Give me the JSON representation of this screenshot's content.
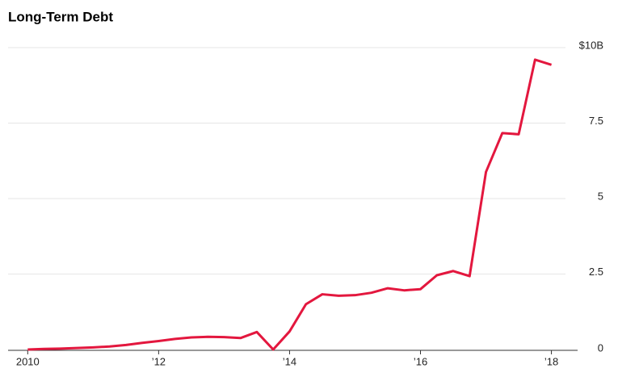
{
  "chart_data": {
    "type": "line",
    "title": "Long-Term Debt",
    "x": [
      2010,
      2010.25,
      2010.5,
      2010.75,
      2011,
      2011.25,
      2011.5,
      2011.75,
      2012,
      2012.25,
      2012.5,
      2012.75,
      2013,
      2013.25,
      2013.5,
      2013.75,
      2014,
      2014.25,
      2014.5,
      2014.75,
      2015,
      2015.25,
      2015.5,
      2015.75,
      2016,
      2016.25,
      2016.5,
      2016.75,
      2017,
      2017.25,
      2017.5,
      2017.75,
      2018
    ],
    "series": [
      {
        "name": "Long-Term Debt",
        "color": "#e3173e",
        "values": [
          0,
          0.02,
          0.03,
          0.05,
          0.07,
          0.1,
          0.15,
          0.22,
          0.28,
          0.35,
          0.4,
          0.42,
          0.41,
          0.38,
          0.58,
          0,
          0.6,
          1.5,
          1.83,
          1.78,
          1.8,
          1.88,
          2.03,
          1.96,
          2.0,
          2.46,
          2.6,
          2.43,
          5.88,
          7.17,
          7.13,
          9.6,
          9.43
        ]
      }
    ],
    "xlim": [
      2009.7,
      2018.4
    ],
    "xticks": [
      {
        "value": 2010,
        "label": "2010"
      },
      {
        "value": 2012,
        "label": "’12"
      },
      {
        "value": 2014,
        "label": "’14"
      },
      {
        "value": 2016,
        "label": "’16"
      },
      {
        "value": 2018,
        "label": "’18"
      }
    ],
    "ylim": [
      0,
      10
    ],
    "yticks": [
      0,
      2.5,
      5,
      7.5,
      {
        "value": 10,
        "label": "$10B"
      }
    ],
    "grid": true
  }
}
